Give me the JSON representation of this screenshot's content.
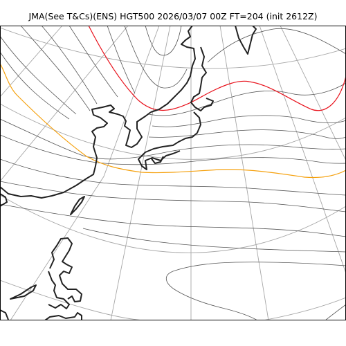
{
  "title": "JMA(See T&Cs)(ENS) HGT500 2026/03/07 00Z FT=204 (init 2612Z)",
  "colors": {
    "graticule": "#a6a6a6",
    "contour": "#555555",
    "highlight_contour_red": "#e8121c",
    "highlight_contour_orange": "#f5a10e",
    "coastline": "#222222",
    "frame": "#000000"
  }
}
